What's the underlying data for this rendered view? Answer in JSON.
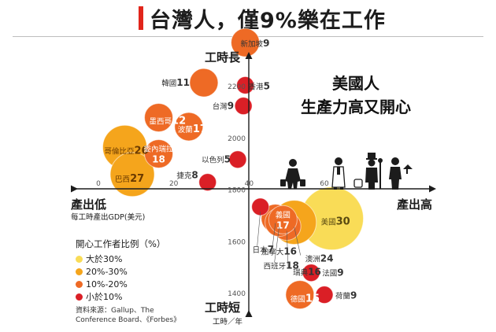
{
  "title": "台灣人，僅9%樂在工作",
  "headline": {
    "line1": "美國人",
    "line2": "生產力高又開心"
  },
  "legend": {
    "title": "開心工作者比例（%）",
    "items": [
      {
        "label": "大於30%",
        "color": "#f9dc57"
      },
      {
        "label": "20%-30%",
        "color": "#f5a51c"
      },
      {
        "label": "10%-20%",
        "color": "#ee6a25"
      },
      {
        "label": "小於10%",
        "color": "#da1f26"
      }
    ]
  },
  "source": {
    "line1": "資料來源：Gallup、The",
    "line2": "Conference Board、《Forbes》"
  },
  "chart_data": {
    "type": "scatter",
    "xlabel": "每工時產出GDP(美元)",
    "ylabel": "工時／年",
    "xlim": [
      -4,
      80
    ],
    "ylim": [
      1330,
      2410
    ],
    "x_ticks": [
      "0",
      "20",
      "40",
      "60"
    ],
    "y_ticks": [
      "1400",
      "1600",
      "1800",
      "2000",
      "2200"
    ],
    "axis_labels": {
      "x_left": "產出低",
      "x_right": "產出高",
      "y_top": "工時長",
      "y_bottom": "工時短",
      "x_sub": "每工時產出GDP(美元)",
      "y_sub": "工時／年"
    },
    "series": [
      {
        "country": "新加坡",
        "rank": "9",
        "x": 39,
        "y": 2370,
        "happy": "10%-20%",
        "color": "#ee6a25"
      },
      {
        "country": "香港",
        "rank": "5",
        "x": 39,
        "y": 2205,
        "happy": "小於10%",
        "color": "#da1f26"
      },
      {
        "country": "韓國",
        "rank": "11",
        "x": 28,
        "y": 2215,
        "happy": "10%-20%",
        "color": "#ee6a25"
      },
      {
        "country": "台灣",
        "rank": "9",
        "x": 38.5,
        "y": 2125,
        "happy": "小於10%",
        "color": "#da1f26"
      },
      {
        "country": "墨西哥",
        "rank": "12",
        "x": 16,
        "y": 2080,
        "happy": "10%-20%",
        "color": "#ee6a25"
      },
      {
        "country": "波蘭",
        "rank": "17",
        "x": 24,
        "y": 2045,
        "happy": "10%-20%",
        "color": "#ee6a25"
      },
      {
        "country": "哥倫比亞",
        "rank": "26",
        "x": 7,
        "y": 1965,
        "happy": "20%-30%",
        "color": "#f5a51c"
      },
      {
        "country": "委內瑞拉",
        "rank": "18",
        "x": 16,
        "y": 1940,
        "happy": "10%-20%",
        "color": "#ee6a25"
      },
      {
        "country": "巴西",
        "rank": "27",
        "x": 9,
        "y": 1860,
        "happy": "20%-30%",
        "color": "#f5a51c"
      },
      {
        "country": "以色列",
        "rank": "5",
        "x": 37,
        "y": 1918,
        "happy": "小於10%",
        "color": "#da1f26"
      },
      {
        "country": "捷克",
        "rank": "8",
        "x": 29,
        "y": 1830,
        "happy": "小於10%",
        "color": "#da1f26"
      },
      {
        "country": "美國",
        "rank": "30",
        "x": 62,
        "y": 1690,
        "happy": "大於30%",
        "color": "#f9dc57"
      },
      {
        "country": "澳洲",
        "rank": "24",
        "x": 52,
        "y": 1675,
        "happy": "20%-30%",
        "color": "#f5a51c"
      },
      {
        "country": "瑞典",
        "rank": "16",
        "x": 50,
        "y": 1660,
        "happy": "10%-20%",
        "color": "#ee6a25"
      },
      {
        "country": "加拿大",
        "rank": "16",
        "x": 47,
        "y": 1690,
        "happy": "10%-20%",
        "color": "#ee6a25"
      },
      {
        "country": "西班牙",
        "rank": "18",
        "x": 48,
        "y": 1675,
        "happy": "10%-20%",
        "color": "#ee6a25"
      },
      {
        "country": "日本",
        "rank": "7",
        "x": 43,
        "y": 1735,
        "happy": "小於10%",
        "color": "#da1f26"
      },
      {
        "country": "義國",
        "rank": "17",
        "x": 49,
        "y": 1685,
        "happy": "10%-20%",
        "color": "#ee6a25"
      },
      {
        "country": "法國",
        "rank": "9",
        "x": 56.5,
        "y": 1480,
        "happy": "小於10%",
        "color": "#da1f26"
      },
      {
        "country": "德國",
        "rank": "15",
        "x": 53.5,
        "y": 1395,
        "happy": "10%-20%",
        "color": "#ee6a25"
      },
      {
        "country": "荷蘭",
        "rank": "9",
        "x": 60,
        "y": 1395,
        "happy": "小於10%",
        "color": "#da1f26"
      }
    ]
  }
}
